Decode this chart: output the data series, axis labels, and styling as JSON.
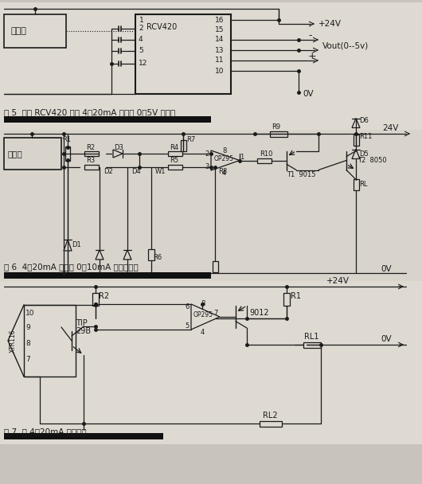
{
  "bg": "#c8c4bc",
  "paper1": "#dedad2",
  "paper2": "#d8d4cc",
  "paper3": "#dedad2",
  "lc": "#1a1a1a",
  "tc": "#1a1a1a",
  "fig_w": 5.3,
  "fig_h": 6.08,
  "dpi": 100,
  "sep_color": "#111111",
  "cap5": "图 5  利用 RCV420 构成 4～20mA 变换为 0～5V 的原理",
  "cap6": "图 6  4～20mA 变换为 0～10mA 的电路原理",
  "cap7": "图 7  双 4～20mA 输出原理",
  "tx": "变送器"
}
